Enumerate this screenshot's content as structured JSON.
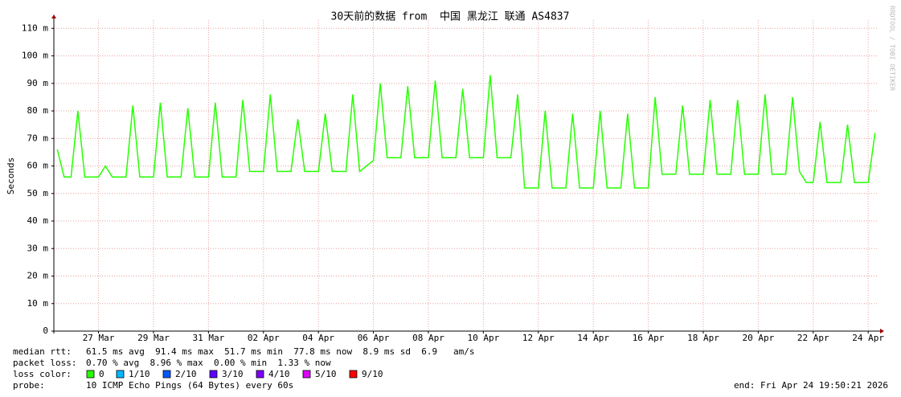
{
  "chart_data": {
    "type": "line",
    "title": "30天前的数据 from  中国 黑龙江 联通 AS4837",
    "y_label": "Seconds",
    "watermark": "RRDTOOL / TOBI OETIKER",
    "categories": [
      null,
      null,
      null,
      null,
      null,
      null,
      "27 Mar",
      null,
      null,
      null,
      null,
      null,
      null,
      null,
      "29 Mar",
      null,
      null,
      null,
      null,
      null,
      null,
      null,
      "31 Mar",
      null,
      null,
      null,
      null,
      null,
      null,
      null,
      "02 Apr",
      null,
      null,
      null,
      null,
      null,
      null,
      null,
      "04 Apr",
      null,
      null,
      null,
      null,
      null,
      null,
      null,
      "06 Apr",
      null,
      null,
      null,
      null,
      null,
      null,
      null,
      "08 Apr",
      null,
      null,
      null,
      null,
      null,
      null,
      null,
      "10 Apr",
      null,
      null,
      null,
      null,
      null,
      null,
      null,
      "12 Apr",
      null,
      null,
      null,
      null,
      null,
      null,
      null,
      "14 Apr",
      null,
      null,
      null,
      null,
      null,
      null,
      null,
      "16 Apr",
      null,
      null,
      null,
      null,
      null,
      null,
      null,
      "18 Apr",
      null,
      null,
      null,
      null,
      null,
      null,
      null,
      "20 Apr",
      null,
      null,
      null,
      null,
      null,
      null,
      null,
      "22 Apr",
      null,
      null,
      null,
      null,
      null,
      null,
      null,
      "24 Apr",
      null
    ],
    "series": [
      {
        "color": "#26ff00",
        "values": [
          0.066,
          0.056,
          0.056,
          0.08,
          0.056,
          0.056,
          0.056,
          0.06,
          0.056,
          0.056,
          0.056,
          0.082,
          0.056,
          0.056,
          0.056,
          0.083,
          0.056,
          0.056,
          0.056,
          0.081,
          0.056,
          0.056,
          0.056,
          0.083,
          0.056,
          0.056,
          0.056,
          0.084,
          0.058,
          0.058,
          0.058,
          0.086,
          0.058,
          0.058,
          0.058,
          0.077,
          0.058,
          0.058,
          0.058,
          0.079,
          0.058,
          0.058,
          0.058,
          0.086,
          0.058,
          0.06,
          0.062,
          0.09,
          0.063,
          0.063,
          0.063,
          0.089,
          0.063,
          0.063,
          0.063,
          0.091,
          0.063,
          0.063,
          0.063,
          0.088,
          0.063,
          0.063,
          0.063,
          0.093,
          0.063,
          0.063,
          0.063,
          0.086,
          0.052,
          0.052,
          0.052,
          0.08,
          0.052,
          0.052,
          0.052,
          0.079,
          0.052,
          0.052,
          0.052,
          0.08,
          0.052,
          0.052,
          0.052,
          0.079,
          0.052,
          0.052,
          0.052,
          0.085,
          0.057,
          0.057,
          0.057,
          0.082,
          0.057,
          0.057,
          0.057,
          0.084,
          0.057,
          0.057,
          0.057,
          0.084,
          0.057,
          0.057,
          0.057,
          0.086,
          0.057,
          0.057,
          0.057,
          0.085,
          0.058,
          0.054,
          0.054,
          0.076,
          0.054,
          0.054,
          0.054,
          0.075,
          0.054,
          0.054,
          0.054,
          0.072
        ]
      }
    ],
    "ylim": [
      0,
      0.113
    ],
    "yticks": [
      0,
      {
        "value": 0.01,
        "label": "10 m"
      },
      {
        "value": 0.02,
        "label": "20 m"
      },
      {
        "value": 0.03,
        "label": "30 m"
      },
      {
        "value": 0.04,
        "label": "40 m"
      },
      {
        "value": 0.05,
        "label": "50 m"
      },
      {
        "value": 0.06,
        "label": "60 m"
      },
      {
        "value": 0.07,
        "label": "70 m"
      },
      {
        "value": 0.08,
        "label": "80 m"
      },
      {
        "value": 0.09,
        "label": "90 m"
      },
      {
        "value": 0.1,
        "label": "100 m"
      },
      {
        "value": 0.11,
        "label": "110 m"
      }
    ],
    "grid": true,
    "median_rtt": {
      "label": "median rtt:",
      "text": "61.5 ms avg  91.4 ms max  51.7 ms min  77.8 ms now  8.9 ms sd  6.9   am/s"
    },
    "packet_loss": {
      "label": "packet loss:",
      "text": "0.70 % avg  8.96 % max  0.00 % min  1.33 % now"
    },
    "loss_color": {
      "label": "loss color:",
      "entries": [
        {
          "label": "0",
          "color": "#26ff00"
        },
        {
          "label": "1/10",
          "color": "#00b8ff"
        },
        {
          "label": "2/10",
          "color": "#0059ff"
        },
        {
          "label": "3/10",
          "color": "#5e00ff"
        },
        {
          "label": "4/10",
          "color": "#7e00ff"
        },
        {
          "label": "5/10",
          "color": "#dd00ff"
        },
        {
          "label": "9/10",
          "color": "#ff0000"
        }
      ]
    },
    "probe": {
      "label": "probe:",
      "text": "10 ICMP Echo Pings (64 Bytes) every 60s"
    },
    "end": "end: Fri Apr 24 19:50:21 2026"
  }
}
